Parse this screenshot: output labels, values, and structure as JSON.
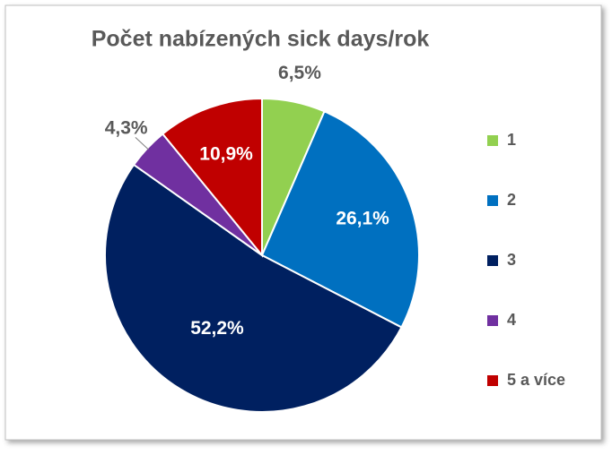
{
  "chart_data": {
    "type": "pie",
    "title": "Počet nabízených sick days/rok",
    "categories": [
      "1",
      "2",
      "3",
      "4",
      "5 a více"
    ],
    "values": [
      6.5,
      26.1,
      52.2,
      4.3,
      10.9
    ],
    "value_labels": [
      "6,5%",
      "26,1%",
      "52,2%",
      "4,3%",
      "10,9%"
    ],
    "colors": [
      "#92d050",
      "#0070c0",
      "#002060",
      "#7030a0",
      "#c00000"
    ],
    "legend": "right"
  }
}
